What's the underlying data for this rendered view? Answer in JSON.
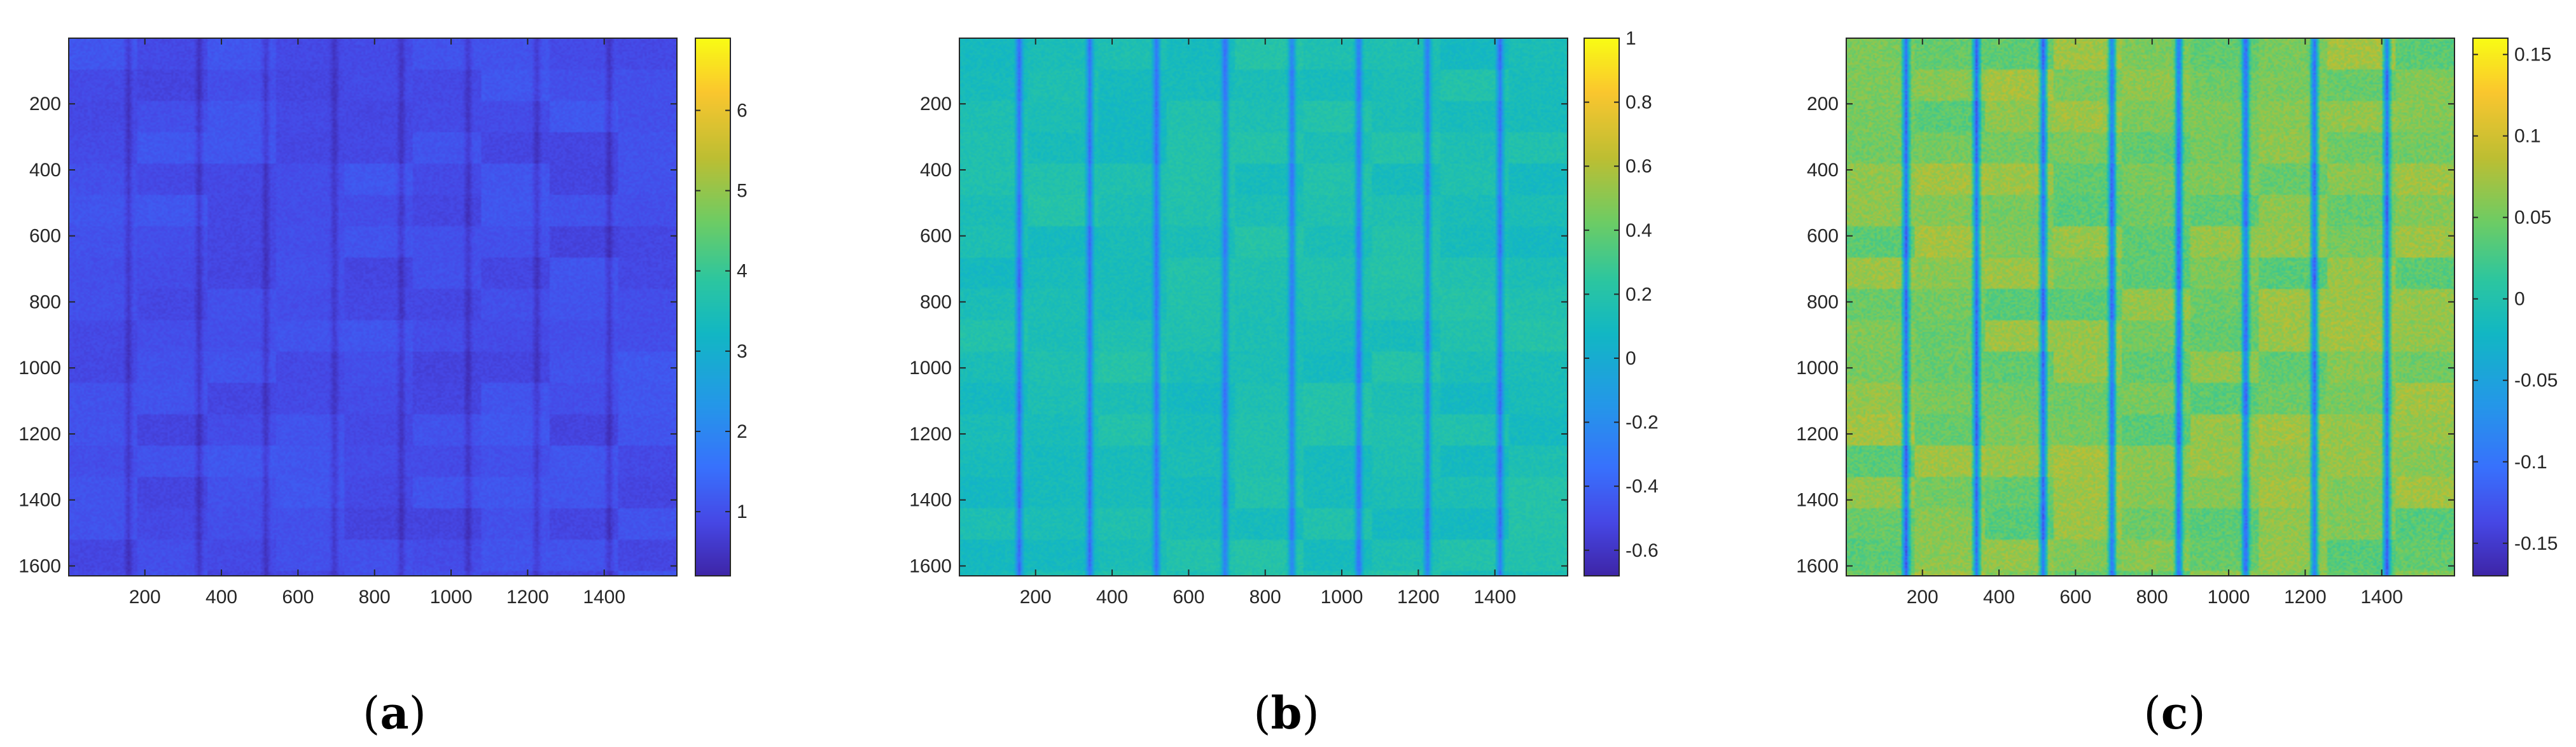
{
  "chart_data": [
    {
      "type": "heatmap",
      "panel_label": "a",
      "x_ticks": [
        200,
        400,
        600,
        800,
        1000,
        1200,
        1400
      ],
      "y_ticks": [
        200,
        400,
        600,
        800,
        1000,
        1200,
        1400,
        1600
      ],
      "xlim": [
        1,
        1590
      ],
      "ylim": [
        1,
        1630
      ],
      "colorbar": {
        "min": 0.2,
        "max": 6.9,
        "ticks": [
          "1",
          "2",
          "3",
          "4",
          "5",
          "6"
        ],
        "tick_values": [
          1,
          2,
          3,
          4,
          5,
          6
        ]
      },
      "field": {
        "base": 0.95,
        "dark_lines": 0.45,
        "bands": 0.35,
        "noise": 0.25
      }
    },
    {
      "type": "heatmap",
      "panel_label": "b",
      "x_ticks": [
        200,
        400,
        600,
        800,
        1000,
        1200,
        1400
      ],
      "y_ticks": [
        200,
        400,
        600,
        800,
        1000,
        1200,
        1400,
        1600
      ],
      "xlim": [
        1,
        1590
      ],
      "ylim": [
        1,
        1630
      ],
      "colorbar": {
        "min": -0.68,
        "max": 1.0,
        "ticks": [
          "-0.6",
          "-0.4",
          "-0.2",
          "0",
          "0.2",
          "0.4",
          "0.6",
          "0.8",
          "1"
        ],
        "tick_values": [
          -0.6,
          -0.4,
          -0.2,
          0,
          0.2,
          0.4,
          0.6,
          0.8,
          1
        ]
      },
      "field": {
        "base": 0.15,
        "dark_lines": 0.5,
        "bands": 0.12,
        "noise": 0.1
      }
    },
    {
      "type": "heatmap",
      "panel_label": "c",
      "x_ticks": [
        200,
        400,
        600,
        800,
        1000,
        1200,
        1400
      ],
      "y_ticks": [
        200,
        400,
        600,
        800,
        1000,
        1200,
        1400,
        1600
      ],
      "xlim": [
        1,
        1590
      ],
      "ylim": [
        1,
        1630
      ],
      "colorbar": {
        "min": -0.17,
        "max": 0.16,
        "ticks": [
          "-0.15",
          "-0.1",
          "-0.05",
          "0",
          "0.05",
          "0.1",
          "0.15"
        ],
        "tick_values": [
          -0.15,
          -0.1,
          -0.05,
          0,
          0.05,
          0.1,
          0.15
        ]
      },
      "field": {
        "base": 0.055,
        "dark_lines": 0.17,
        "bands": 0.04,
        "noise": 0.035
      }
    }
  ],
  "colors": {
    "parula_low": "#3e26a8",
    "parula_mid": "#1fa8c8",
    "parula_high": "#f9fb15",
    "axis": "#262626"
  }
}
